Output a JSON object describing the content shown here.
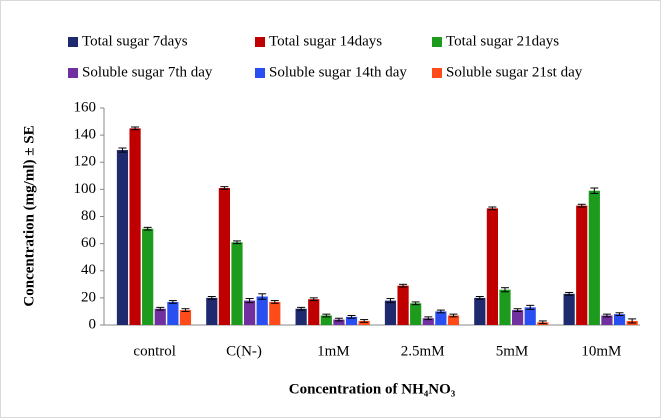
{
  "chart_data": {
    "type": "bar",
    "ylabel": "Concentration (mg/ml) ± SE",
    "xlabel": "Concentration of NH₄NO₃",
    "categories": [
      "control",
      "C(N-)",
      "1mM",
      "2.5mM",
      "5mM",
      "10mM"
    ],
    "series": [
      {
        "name": "Total sugar 7days",
        "color": "#1f2a6e",
        "values": [
          129,
          20,
          12,
          18,
          20,
          23
        ],
        "errors": [
          1.5,
          1,
          1,
          1.5,
          1,
          1
        ]
      },
      {
        "name": "Total sugar 14days",
        "color": "#c00000",
        "values": [
          145,
          101,
          19,
          29,
          86,
          88
        ],
        "errors": [
          1,
          1,
          1,
          1,
          1,
          1
        ]
      },
      {
        "name": "Total sugar 21days",
        "color": "#1d9b1d",
        "values": [
          71,
          61,
          7,
          16,
          26,
          99
        ],
        "errors": [
          1,
          1,
          1,
          1,
          1.5,
          2
        ]
      },
      {
        "name": "Soluble sugar 7th day",
        "color": "#7030a0",
        "values": [
          12,
          18,
          4,
          5,
          11,
          7
        ],
        "errors": [
          1,
          1.5,
          1,
          1,
          1,
          1
        ]
      },
      {
        "name": "Soluble sugar 14th day",
        "color": "#2a4ff0",
        "values": [
          17,
          21,
          6,
          10,
          13,
          8
        ],
        "errors": [
          1,
          2,
          1,
          1,
          1.5,
          1
        ]
      },
      {
        "name": "Soluble sugar 21st day",
        "color": "#ff4a1a",
        "values": [
          11,
          17,
          3,
          7,
          2,
          3
        ],
        "errors": [
          1,
          1,
          1,
          1,
          1,
          1.5
        ]
      }
    ],
    "ylim": [
      0,
      160
    ],
    "yticks": [
      0,
      20,
      40,
      60,
      80,
      100,
      120,
      140,
      160
    ],
    "grid": false
  }
}
